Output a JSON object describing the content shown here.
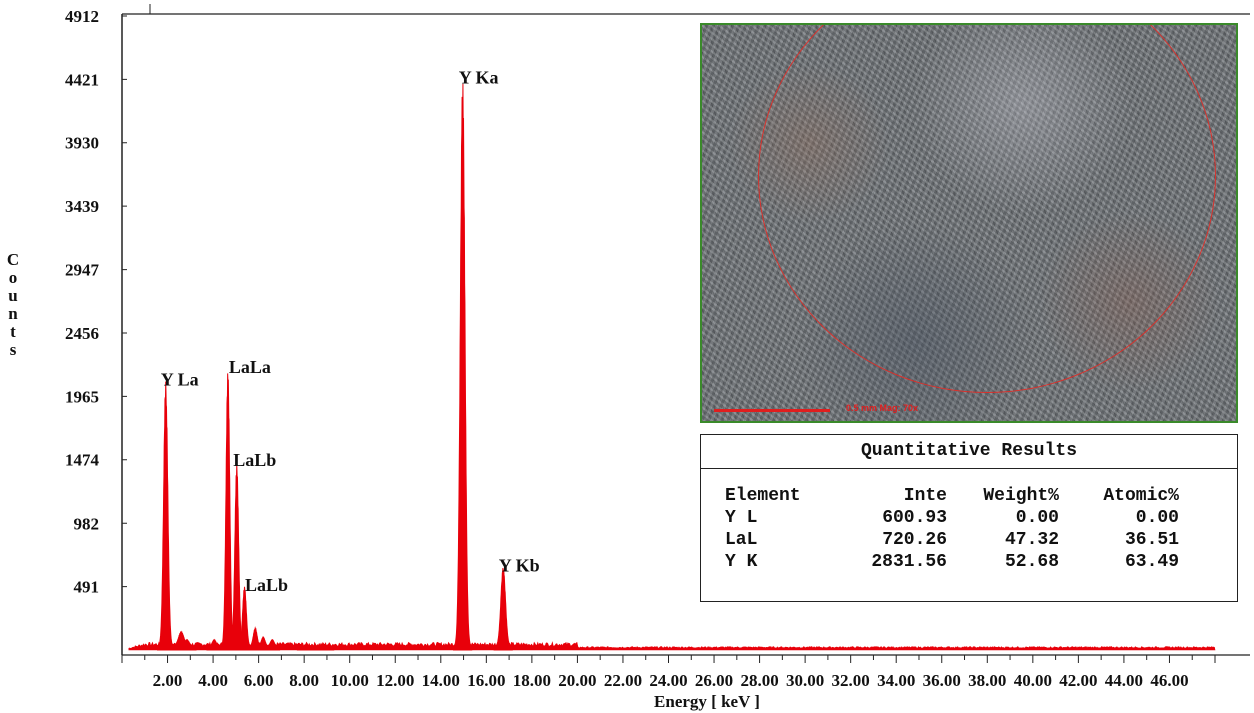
{
  "chart_data": {
    "type": "line",
    "xlabel": "Energy [ keV ]",
    "ylabel": "Counts",
    "xlim": [
      0,
      48
    ],
    "ylim": [
      0,
      4912
    ],
    "y_ticks": [
      "491",
      "982",
      "1474",
      "1965",
      "2456",
      "2947",
      "3439",
      "3930",
      "4421",
      "4912"
    ],
    "y_tick_values": [
      491,
      982,
      1474,
      1965,
      2456,
      2947,
      3439,
      3930,
      4421,
      4912
    ],
    "x_ticks": [
      "2.00",
      "4.00",
      "6.00",
      "8.00",
      "10.00",
      "12.00",
      "14.00",
      "16.00",
      "18.00",
      "20.00",
      "22.00",
      "24.00",
      "26.00",
      "28.00",
      "30.00",
      "32.00",
      "34.00",
      "36.00",
      "38.00",
      "40.00",
      "42.00",
      "44.00",
      "46.00"
    ],
    "x_tick_values": [
      2,
      4,
      6,
      8,
      10,
      12,
      14,
      16,
      18,
      20,
      22,
      24,
      26,
      28,
      30,
      32,
      34,
      36,
      38,
      40,
      42,
      44,
      46
    ],
    "series": [
      {
        "color": "#e8000a",
        "peaks": [
          {
            "x": 1.92,
            "y": 2080,
            "width": 0.09
          },
          {
            "x": 2.6,
            "y": 140,
            "width": 0.12
          },
          {
            "x": 2.85,
            "y": 80,
            "width": 0.1
          },
          {
            "x": 4.05,
            "y": 80,
            "width": 0.08
          },
          {
            "x": 4.65,
            "y": 2160,
            "width": 0.08
          },
          {
            "x": 5.04,
            "y": 1440,
            "width": 0.08
          },
          {
            "x": 5.38,
            "y": 490,
            "width": 0.08
          },
          {
            "x": 5.85,
            "y": 170,
            "width": 0.08
          },
          {
            "x": 6.2,
            "y": 100,
            "width": 0.08
          },
          {
            "x": 6.6,
            "y": 80,
            "width": 0.08
          },
          {
            "x": 8.5,
            "y": 25,
            "width": 0.2
          },
          {
            "x": 14.96,
            "y": 4420,
            "width": 0.1
          },
          {
            "x": 16.74,
            "y": 640,
            "width": 0.1
          }
        ],
        "baseline": 30
      }
    ],
    "annotations": [
      {
        "text": "Y La",
        "x": 1.92,
        "y": 2080
      },
      {
        "text": "LaLa",
        "x": 4.65,
        "y": 2160
      },
      {
        "text": "LaLb",
        "x": 5.04,
        "y": 1440
      },
      {
        "text": "LaLb",
        "x": 5.38,
        "y": 490
      },
      {
        "text": "Y Ka",
        "x": 14.96,
        "y": 4420
      },
      {
        "text": "Y Kb",
        "x": 16.74,
        "y": 640
      }
    ],
    "grid": false
  },
  "inset_image": {
    "scale_text": "0.5 mm  Mag: 70x",
    "circle_color": "#d8312c",
    "border_color": "#3a8a2a"
  },
  "results": {
    "title": "Quantitative Results",
    "columns": [
      "Element",
      "Inte",
      "Weight%",
      "Atomic%"
    ],
    "rows": [
      [
        "Y L",
        "600.93",
        "0.00",
        "0.00"
      ],
      [
        "LaL",
        "720.26",
        "47.32",
        "36.51"
      ],
      [
        "Y K",
        "2831.56",
        "52.68",
        "63.49"
      ]
    ]
  }
}
